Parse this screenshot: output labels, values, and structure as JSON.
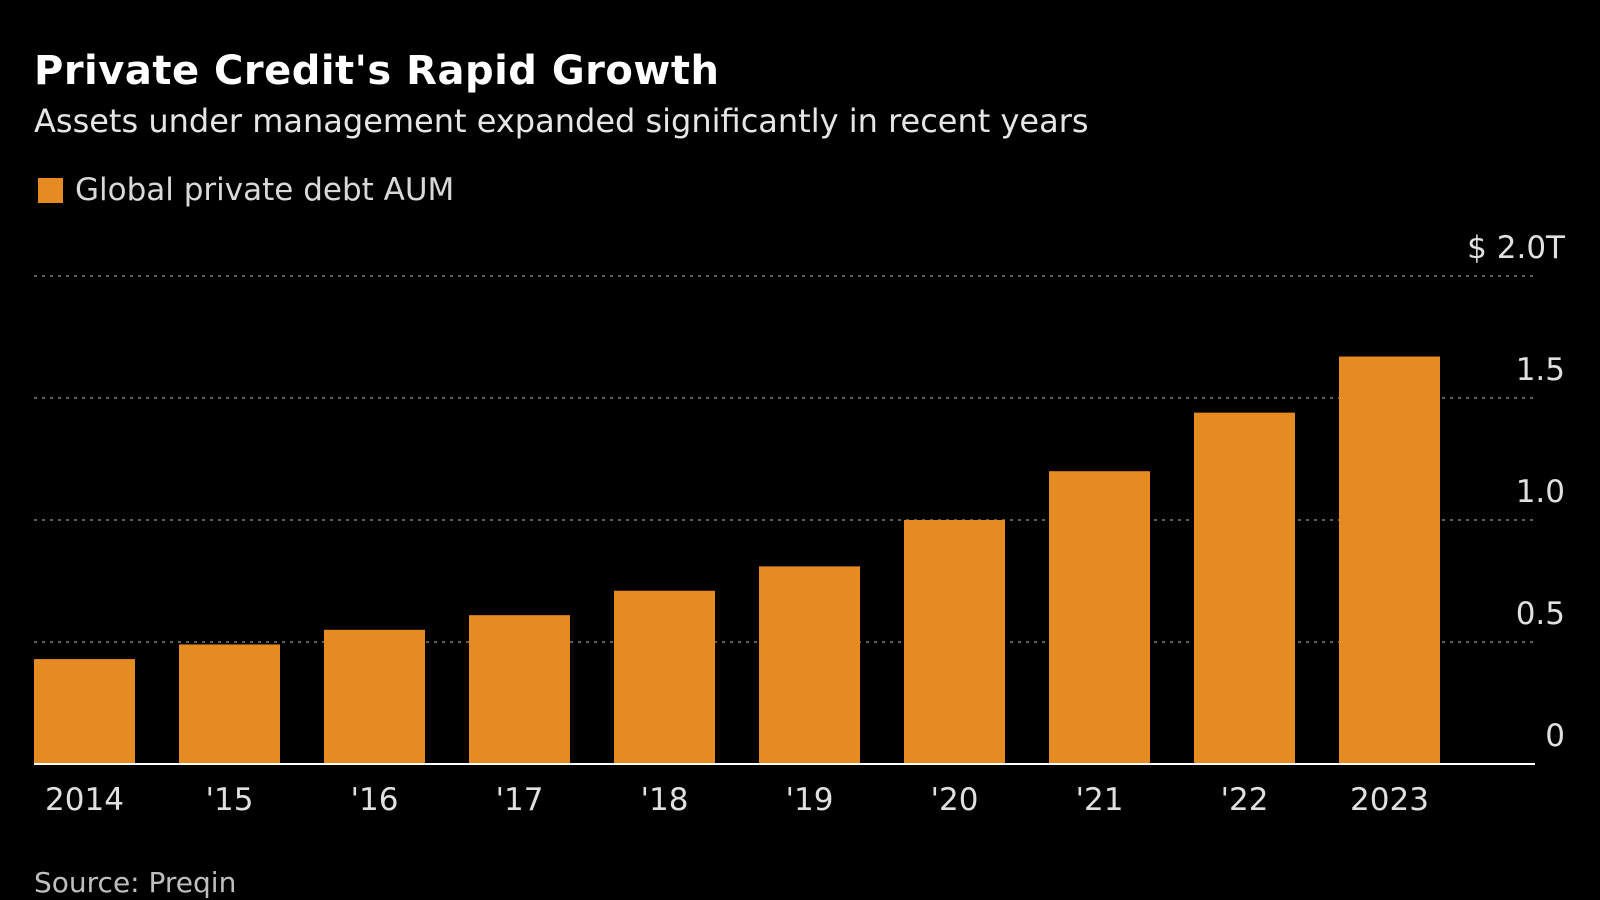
{
  "title": "Private Credit's Rapid Growth",
  "subtitle": "Assets under management expanded significantly in recent years",
  "source": "Source: Preqin",
  "colors": {
    "background": "#000000",
    "bar": "#e68a22",
    "grid": "#5f5f5f",
    "baseline": "#ffffff"
  },
  "chart_data": {
    "type": "bar",
    "categories": [
      "2014",
      "'15",
      "'16",
      "'17",
      "'18",
      "'19",
      "'20",
      "'21",
      "'22",
      "2023"
    ],
    "series": [
      {
        "name": "Global private debt AUM",
        "values": [
          0.43,
          0.49,
          0.55,
          0.61,
          0.71,
          0.81,
          1.0,
          1.2,
          1.44,
          1.67
        ]
      }
    ],
    "ylim": [
      0,
      2.0
    ],
    "yticks": [
      0,
      0.5,
      1.0,
      1.5,
      2.0
    ],
    "ytick_labels": [
      "0",
      "0.5",
      "1.0",
      "1.5",
      "$ 2.0T"
    ],
    "y_axis_side": "right",
    "grid": true,
    "grid_style": "dotted",
    "legend_position": "top-left"
  }
}
